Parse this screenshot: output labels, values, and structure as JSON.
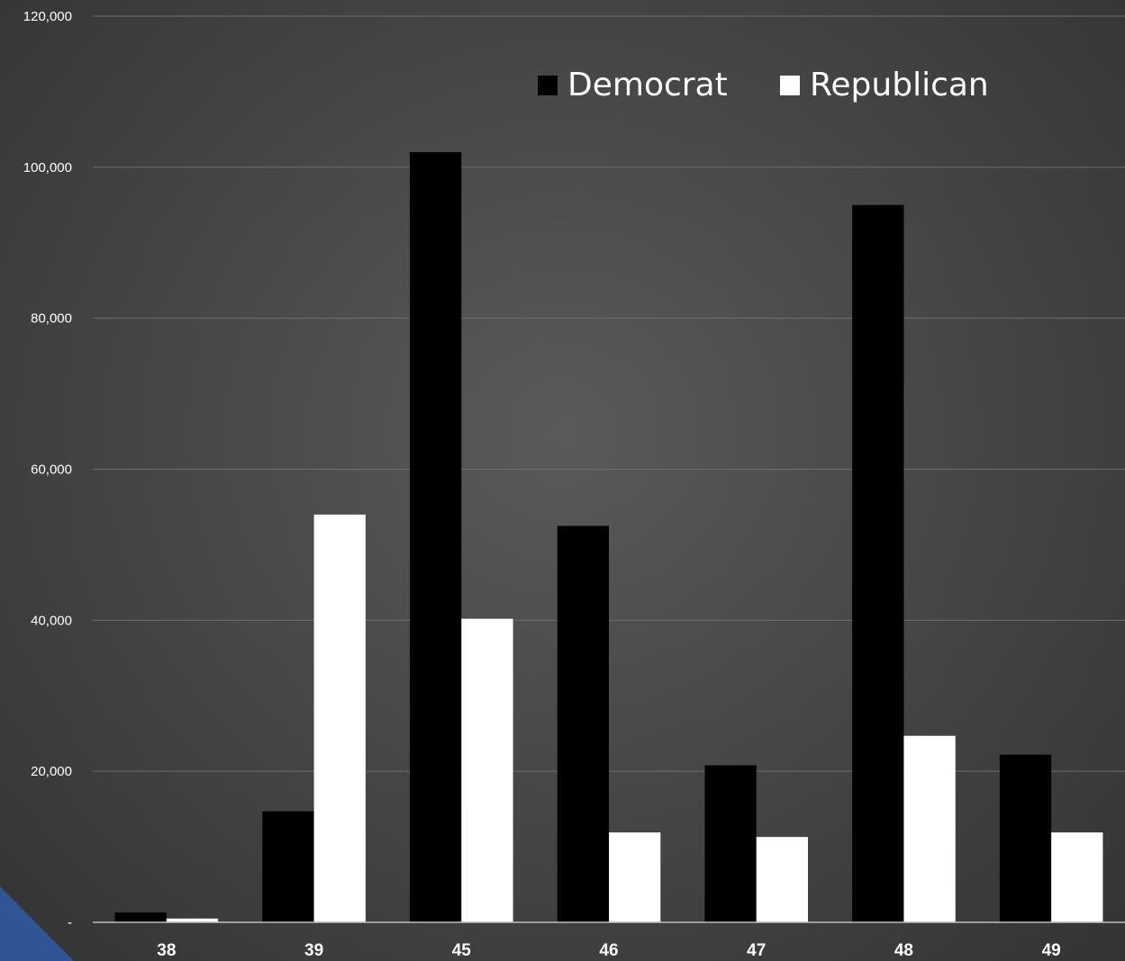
{
  "chart_data": {
    "type": "bar",
    "categories": [
      "38",
      "39",
      "45",
      "46",
      "47",
      "48",
      "49"
    ],
    "series": [
      {
        "name": "Democrat",
        "color": "#000000",
        "values": [
          1300,
          14700,
          102000,
          52500,
          20800,
          95000,
          22200
        ]
      },
      {
        "name": "Republican",
        "color": "#ffffff",
        "values": [
          500,
          54000,
          40200,
          11900,
          11300,
          24700,
          11900
        ]
      }
    ],
    "ylim": [
      0,
      120000
    ],
    "yticks": [
      "-",
      "20,000",
      "40,000",
      "60,000",
      "80,000",
      "100,000",
      "120,000"
    ],
    "title": "",
    "xlabel": "",
    "ylabel": "",
    "grid": true,
    "legend_position": "top-right"
  }
}
